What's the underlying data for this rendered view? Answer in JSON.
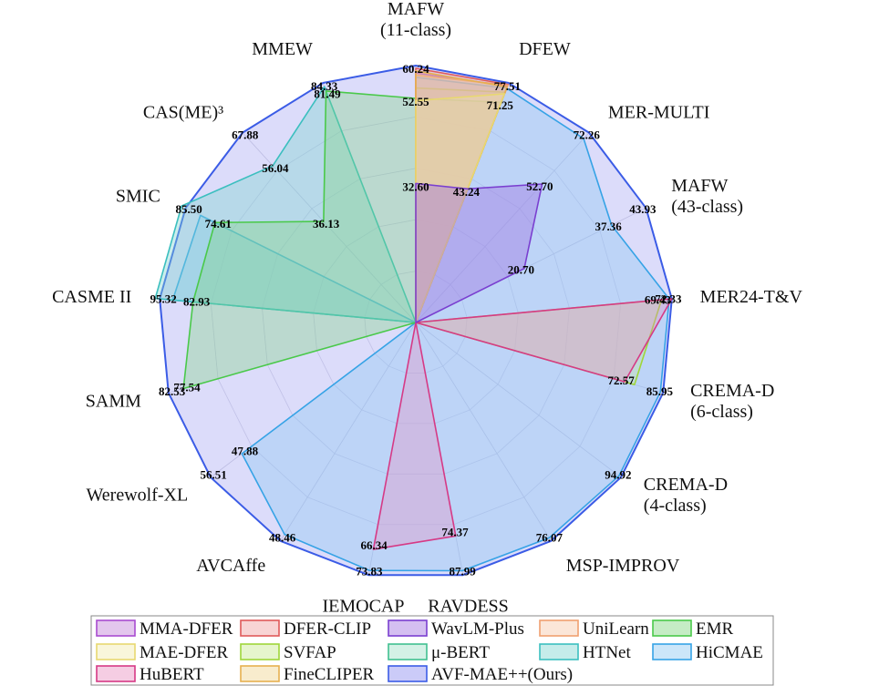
{
  "chart_data": {
    "type": "radar",
    "axes": [
      {
        "label": "MAFW\n(11-class)",
        "max": 60.24
      },
      {
        "label": "DFEW",
        "max": 77.51
      },
      {
        "label": "MER-MULTI",
        "max": 72.26
      },
      {
        "label": "MAFW\n(43-class)",
        "max": 43.93
      },
      {
        "label": "MER24-T&V",
        "max": 72.33
      },
      {
        "label": "CREMA-D\n(6-class)",
        "max": 85.95
      },
      {
        "label": "CREMA-D\n(4-class)",
        "max": 94.92
      },
      {
        "label": "MSP-IMPROV",
        "max": 76.07
      },
      {
        "label": "RAVDESS",
        "max": 87.99
      },
      {
        "label": "IEMOCAP",
        "max": 73.83
      },
      {
        "label": "AVCAffe",
        "max": 48.46
      },
      {
        "label": "Werewolf-XL",
        "max": 56.51
      },
      {
        "label": "SAMM",
        "max": 82.53
      },
      {
        "label": "CASME II",
        "max": 95.32
      },
      {
        "label": "SMIC",
        "max": 85.5
      },
      {
        "label": "CAS(ME)³",
        "max": 67.88
      },
      {
        "label": "MMEW",
        "max": 84.33
      }
    ],
    "series": [
      {
        "name": "AVF-MAE++(Ours)",
        "color": "#3b5ce6",
        "fill": "#8c8cf0",
        "opacity": 0.3,
        "values": [
          60.24,
          77.51,
          72.26,
          43.93,
          72.33,
          85.95,
          94.92,
          76.07,
          87.99,
          73.83,
          48.46,
          56.51,
          82.53,
          95.32,
          85.5,
          67.88,
          84.33
        ]
      },
      {
        "name": "HiCMAE",
        "color": "#36a3e6",
        "fill": "#8ec8f2",
        "opacity": 0.4,
        "values": [
          57.5,
          75.8,
          70.0,
          37.36,
          71.6,
          85.0,
          94.0,
          75.0,
          86.5,
          72.5,
          47.0,
          47.88,
          0,
          90.5,
          80.0,
          0,
          0
        ]
      },
      {
        "name": "HTNet",
        "color": "#3bbfbf",
        "fill": "#7fd4d0",
        "opacity": 0.4,
        "values": [
          0,
          0,
          0,
          0,
          0,
          0,
          0,
          0,
          0,
          0,
          0,
          0,
          0,
          97.0,
          87.0,
          56.04,
          83.0
        ]
      },
      {
        "name": "EMR",
        "color": "#4ac94a",
        "fill": "#7ed47e",
        "opacity": 0.35,
        "values": [
          52.55,
          71.25,
          0,
          0,
          0,
          0,
          0,
          0,
          0,
          0,
          0,
          0,
          77.54,
          82.93,
          74.61,
          36.13,
          81.49
        ]
      },
      {
        "name": "SVFAP",
        "color": "#9fd63a",
        "fill": "#c8e890",
        "opacity": 0.3,
        "values": [
          55.0,
          74.5,
          0,
          0,
          69.43,
          76.0,
          0,
          0,
          0,
          0,
          0,
          0,
          0,
          0,
          0,
          0,
          0
        ]
      },
      {
        "name": "MMA-DFER",
        "color": "#a84bd0",
        "fill": "#c080d8",
        "opacity": 0.35,
        "values": [
          58.5,
          76.5,
          0,
          0,
          0,
          0,
          0,
          0,
          0,
          0,
          0,
          0,
          0,
          0,
          0,
          0,
          0
        ]
      },
      {
        "name": "DFER-CLIP",
        "color": "#e05a5a",
        "fill": "#f0a0a0",
        "opacity": 0.3,
        "values": [
          59.6,
          77.0,
          0,
          0,
          0,
          0,
          0,
          0,
          0,
          0,
          0,
          0,
          0,
          0,
          0,
          0,
          0
        ]
      },
      {
        "name": "UniLearn",
        "color": "#f0a070",
        "fill": "#f6c8a8",
        "opacity": 0.3,
        "values": [
          58.0,
          76.8,
          0,
          0,
          0,
          0,
          0,
          0,
          0,
          0,
          0,
          0,
          0,
          0,
          0,
          0,
          0
        ]
      },
      {
        "name": "FineCLIPER",
        "color": "#e6b050",
        "fill": "#f0d490",
        "opacity": 0.3,
        "values": [
          59.0,
          76.2,
          0,
          0,
          0,
          0,
          0,
          0,
          0,
          0,
          0,
          0,
          0,
          0,
          0,
          0,
          0
        ]
      },
      {
        "name": "MAE-DFER",
        "color": "#e8d870",
        "fill": "#f2eab0",
        "opacity": 0.3,
        "values": [
          52.0,
          74.0,
          0,
          0,
          0,
          0,
          0,
          0,
          0,
          0,
          0,
          0,
          0,
          0,
          0,
          0,
          0
        ]
      },
      {
        "name": "μ-BERT",
        "color": "#40c090",
        "fill": "#a0e0c8",
        "opacity": 0.3,
        "values": [
          0,
          0,
          0,
          0,
          0,
          0,
          0,
          0,
          0,
          0,
          0,
          0,
          0,
          0,
          0,
          0,
          0
        ]
      },
      {
        "name": "HuBERT",
        "color": "#d63a86",
        "fill": "#e890c0",
        "opacity": 0.35,
        "values": [
          0,
          0,
          0,
          0,
          72.33,
          72.57,
          0,
          0,
          74.37,
          66.34,
          0,
          0,
          0,
          0,
          0,
          0,
          0
        ]
      },
      {
        "name": "WavLM-Plus",
        "color": "#7a3fd0",
        "fill": "#a070e0",
        "opacity": 0.4,
        "values": [
          32.6,
          43.24,
          52.7,
          20.7,
          0,
          0,
          0,
          0,
          0,
          0,
          0,
          0,
          0,
          0,
          0,
          0,
          0
        ]
      }
    ],
    "value_labels": [
      {
        "axis": 0,
        "value": 60.24,
        "text": "60.24"
      },
      {
        "axis": 0,
        "value": 52.55,
        "text": "52.55"
      },
      {
        "axis": 0,
        "value": 32.6,
        "text": "32.60"
      },
      {
        "axis": 1,
        "value": 77.51,
        "text": "77.51"
      },
      {
        "axis": 1,
        "value": 71.25,
        "text": "71.25"
      },
      {
        "axis": 1,
        "value": 43.24,
        "text": "43.24"
      },
      {
        "axis": 2,
        "value": 72.26,
        "text": "72.26"
      },
      {
        "axis": 2,
        "value": 52.7,
        "text": "52.70"
      },
      {
        "axis": 3,
        "value": 43.93,
        "text": "43.93"
      },
      {
        "axis": 3,
        "value": 37.36,
        "text": "37.36"
      },
      {
        "axis": 3,
        "value": 20.7,
        "text": "20.70"
      },
      {
        "axis": 4,
        "value": 72.33,
        "text": "72.33"
      },
      {
        "axis": 4,
        "value": 69.43,
        "text": "69.43"
      },
      {
        "axis": 5,
        "value": 85.95,
        "text": "85.95"
      },
      {
        "axis": 5,
        "value": 72.57,
        "text": "72.57"
      },
      {
        "axis": 6,
        "value": 94.92,
        "text": "94.92"
      },
      {
        "axis": 7,
        "value": 76.07,
        "text": "76.07"
      },
      {
        "axis": 8,
        "value": 87.99,
        "text": "87.99"
      },
      {
        "axis": 8,
        "value": 74.37,
        "text": "74.37"
      },
      {
        "axis": 9,
        "value": 73.83,
        "text": "73.83"
      },
      {
        "axis": 9,
        "value": 66.34,
        "text": "66.34"
      },
      {
        "axis": 10,
        "value": 48.46,
        "text": "48.46"
      },
      {
        "axis": 11,
        "value": 56.51,
        "text": "56.51"
      },
      {
        "axis": 11,
        "value": 47.88,
        "text": "47.88"
      },
      {
        "axis": 12,
        "value": 82.53,
        "text": "82.53"
      },
      {
        "axis": 12,
        "value": 77.54,
        "text": "77.54"
      },
      {
        "axis": 13,
        "value": 95.32,
        "text": "95.32"
      },
      {
        "axis": 13,
        "value": 82.93,
        "text": "82.93"
      },
      {
        "axis": 14,
        "value": 85.5,
        "text": "85.50"
      },
      {
        "axis": 14,
        "value": 74.61,
        "text": "74.61"
      },
      {
        "axis": 15,
        "value": 67.88,
        "text": "67.88"
      },
      {
        "axis": 15,
        "value": 56.04,
        "text": "56.04"
      },
      {
        "axis": 15,
        "value": 36.13,
        "text": "36.13"
      },
      {
        "axis": 16,
        "value": 84.33,
        "text": "84.33"
      },
      {
        "axis": 16,
        "value": 81.49,
        "text": "81.49"
      }
    ],
    "grid": true,
    "legend": {
      "position": "bottom",
      "entries": [
        "MMA-DFER",
        "DFER-CLIP",
        "WavLM-Plus",
        "UniLearn",
        "EMR",
        "MAE-DFER",
        "SVFAP",
        "μ-BERT",
        "HTNet",
        "HiCMAE",
        "HuBERT",
        "FineCLIPER",
        "AVF-MAE++(Ours)"
      ]
    }
  }
}
